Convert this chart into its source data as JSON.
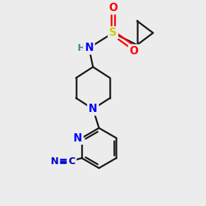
{
  "background_color": "#ececec",
  "bond_color": "#1a1a1a",
  "bond_width": 1.8,
  "atom_colors": {
    "N": "#0000ff",
    "O": "#ff0000",
    "S": "#cccc00",
    "H": "#4a8a8a",
    "CN_label": "#0000cd"
  },
  "figsize": [
    3.0,
    3.0
  ],
  "dpi": 100,
  "xlim": [
    0,
    10
  ],
  "ylim": [
    0,
    10
  ]
}
